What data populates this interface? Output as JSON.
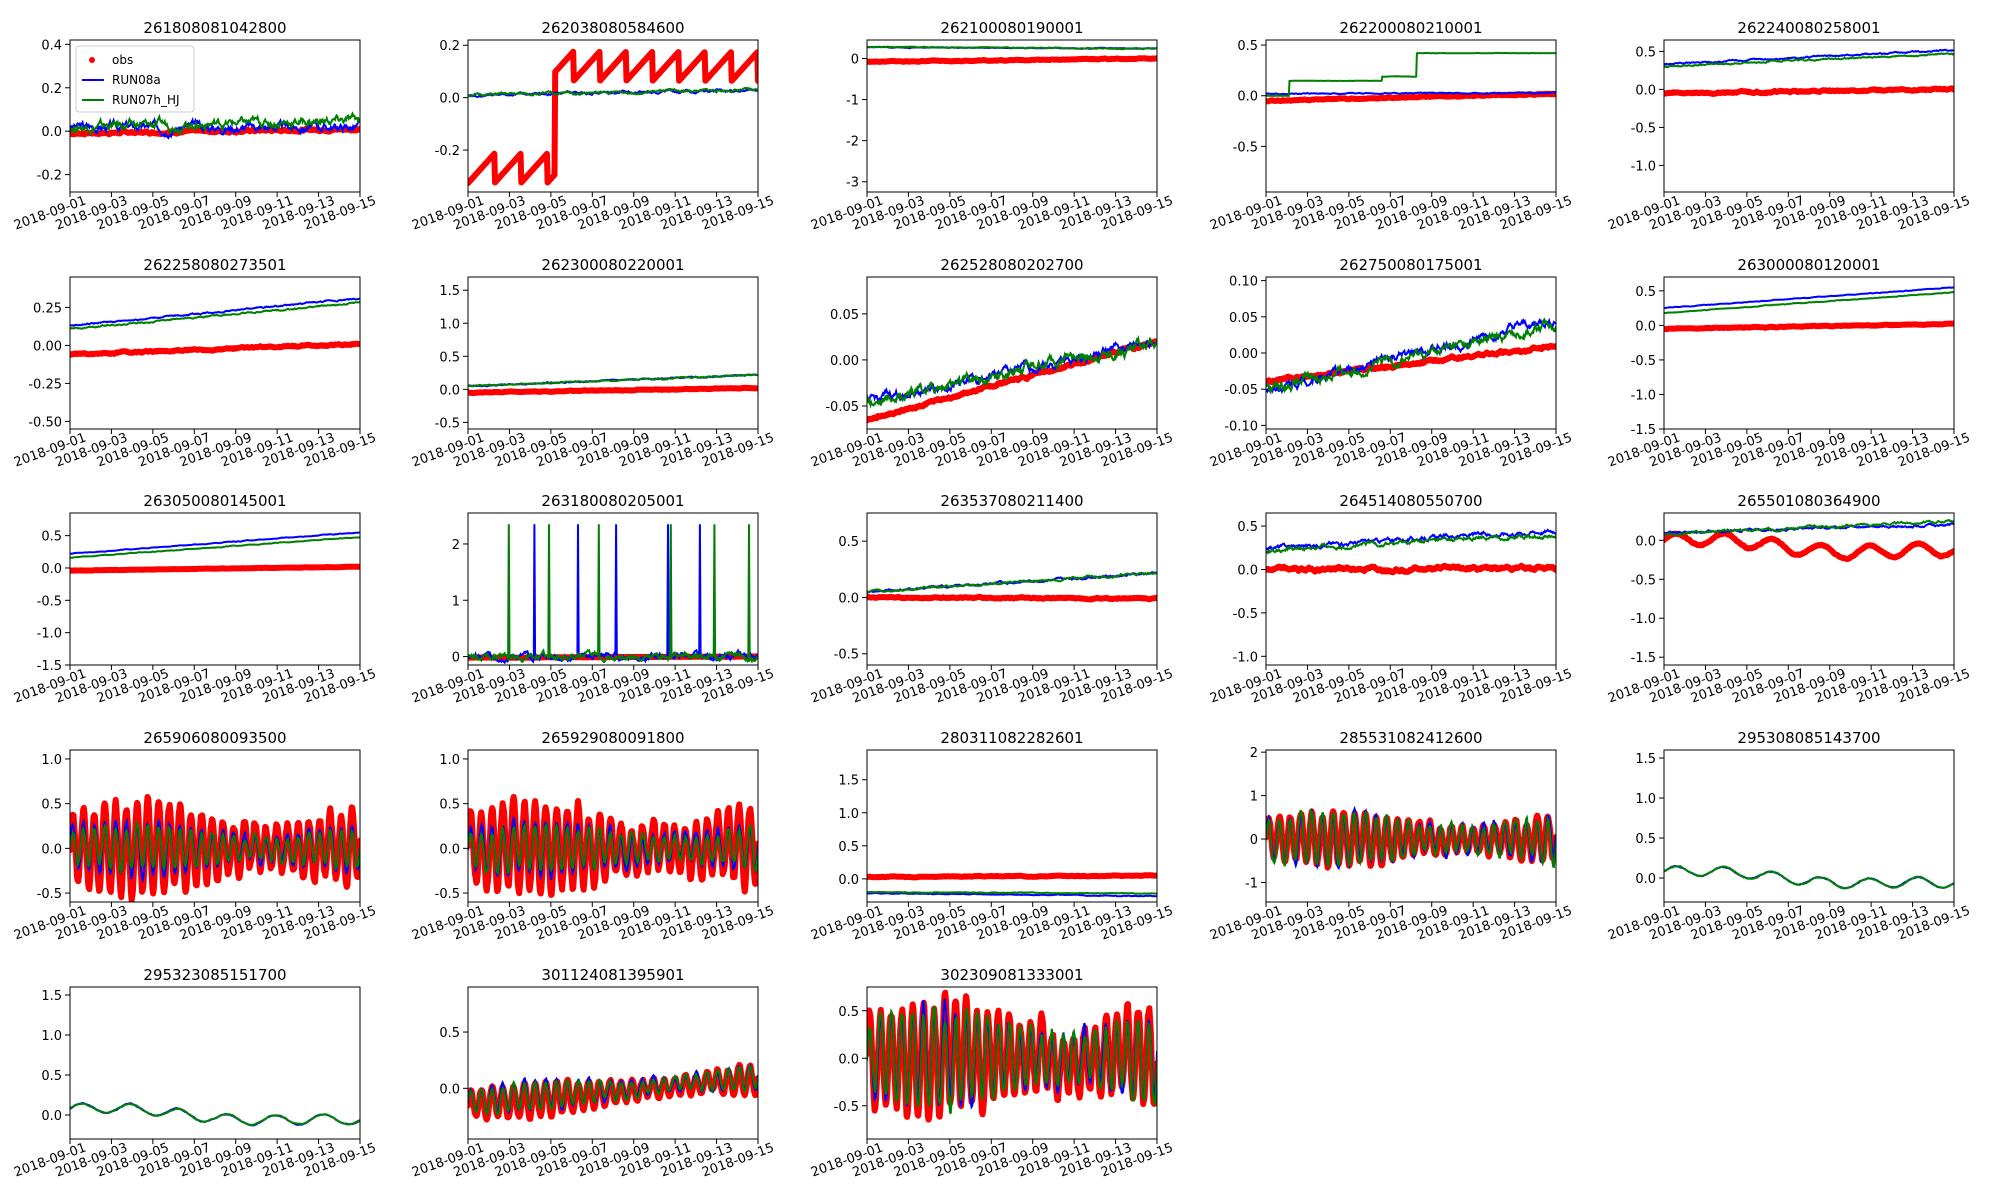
{
  "chart_data": [
    {
      "type": "line",
      "title": "261808081042800",
      "ylim": [
        -0.28,
        0.42
      ],
      "yticks": [
        "-0.2",
        "0.0",
        "0.2",
        "0.4"
      ],
      "ytick_values": [
        -0.2,
        0.0,
        0.2,
        0.4
      ],
      "x": [
        "2018-09-01",
        "2018-09-15"
      ],
      "obs": {
        "kind": "steady",
        "start": -0.01,
        "end": 0.01,
        "amp": 0.01
      },
      "series": [
        {
          "name": "RUN08a",
          "color": "#0000ff",
          "kind": "trend",
          "start": 0.02,
          "end": 0.02,
          "amp": 0.04
        },
        {
          "name": "RUN07h_HJ",
          "color": "#008000",
          "kind": "trend",
          "start": 0.02,
          "end": 0.05,
          "amp": 0.04
        }
      ],
      "legend": {
        "position": "upper-left",
        "entries": [
          "obs",
          "RUN08a",
          "RUN07h_HJ"
        ]
      }
    },
    {
      "type": "line",
      "title": "262038080584600",
      "ylim": [
        -0.36,
        0.22
      ],
      "yticks": [
        "-0.2",
        "0.0",
        "0.2"
      ],
      "ytick_values": [
        -0.2,
        0.0,
        0.2
      ],
      "x": [
        "2018-09-01",
        "2018-09-15"
      ],
      "obs": {
        "kind": "sawtooth_step",
        "start": -0.27,
        "end": 0.12,
        "amp": 0.08
      },
      "series": [
        {
          "name": "RUN08a",
          "color": "#0000ff",
          "kind": "trend",
          "start": 0.01,
          "end": 0.03,
          "amp": 0.01
        },
        {
          "name": "RUN07h_HJ",
          "color": "#008000",
          "kind": "trend",
          "start": 0.01,
          "end": 0.03,
          "amp": 0.01
        }
      ]
    },
    {
      "type": "line",
      "title": "262100080190001",
      "ylim": [
        -3.25,
        0.45
      ],
      "yticks": [
        "-3",
        "-2",
        "-1",
        "0"
      ],
      "ytick_values": [
        -3,
        -2,
        -1,
        0
      ],
      "x": [
        "2018-09-01",
        "2018-09-15"
      ],
      "obs": {
        "kind": "steady",
        "start": -0.08,
        "end": 0.0,
        "amp": 0.02
      },
      "series": [
        {
          "name": "RUN08a",
          "color": "#0000ff",
          "kind": "trend",
          "start": 0.28,
          "end": 0.24,
          "amp": 0.02
        },
        {
          "name": "RUN07h_HJ",
          "color": "#008000",
          "kind": "trend",
          "start": 0.28,
          "end": 0.24,
          "amp": 0.02
        }
      ]
    },
    {
      "type": "line",
      "title": "262200080210001",
      "ylim": [
        -0.95,
        0.55
      ],
      "yticks": [
        "-0.5",
        "0.0",
        "0.5"
      ],
      "ytick_values": [
        -0.5,
        0.0,
        0.5
      ],
      "x": [
        "2018-09-01",
        "2018-09-15"
      ],
      "obs": {
        "kind": "steady",
        "start": -0.05,
        "end": 0.02,
        "amp": 0.01
      },
      "series": [
        {
          "name": "RUN08a",
          "color": "#0000ff",
          "kind": "trend",
          "start": 0.02,
          "end": 0.03,
          "amp": 0.01
        },
        {
          "name": "RUN07h_HJ",
          "color": "#008000",
          "kind": "steps",
          "start": 0.0,
          "end": 0.42,
          "amp": 0.01
        }
      ]
    },
    {
      "type": "line",
      "title": "262240080258001",
      "ylim": [
        -1.35,
        0.65
      ],
      "yticks": [
        "-1.0",
        "-0.5",
        "0.0",
        "0.5"
      ],
      "ytick_values": [
        -1.0,
        -0.5,
        0.0,
        0.5
      ],
      "x": [
        "2018-09-01",
        "2018-09-15"
      ],
      "obs": {
        "kind": "steady",
        "start": -0.05,
        "end": 0.0,
        "amp": 0.02
      },
      "series": [
        {
          "name": "RUN08a",
          "color": "#0000ff",
          "kind": "trend",
          "start": 0.33,
          "end": 0.52,
          "amp": 0.02
        },
        {
          "name": "RUN07h_HJ",
          "color": "#008000",
          "kind": "trend",
          "start": 0.3,
          "end": 0.47,
          "amp": 0.02
        }
      ]
    },
    {
      "type": "line",
      "title": "262258080273501",
      "ylim": [
        -0.55,
        0.45
      ],
      "yticks": [
        "-0.50",
        "-0.25",
        "0.00",
        "0.25"
      ],
      "ytick_values": [
        -0.5,
        -0.25,
        0.0,
        0.25
      ],
      "x": [
        "2018-09-01",
        "2018-09-15"
      ],
      "obs": {
        "kind": "steady",
        "start": -0.06,
        "end": 0.01,
        "amp": 0.01
      },
      "series": [
        {
          "name": "RUN08a",
          "color": "#0000ff",
          "kind": "trend",
          "start": 0.13,
          "end": 0.31,
          "amp": 0.01
        },
        {
          "name": "RUN07h_HJ",
          "color": "#008000",
          "kind": "trend",
          "start": 0.11,
          "end": 0.28,
          "amp": 0.01
        }
      ]
    },
    {
      "type": "line",
      "title": "262300080220001",
      "ylim": [
        -0.6,
        1.7
      ],
      "yticks": [
        "-0.5",
        "0.0",
        "0.5",
        "1.0",
        "1.5"
      ],
      "ytick_values": [
        -0.5,
        0.0,
        0.5,
        1.0,
        1.5
      ],
      "x": [
        "2018-09-01",
        "2018-09-15"
      ],
      "obs": {
        "kind": "steady",
        "start": -0.05,
        "end": 0.02,
        "amp": 0.01
      },
      "series": [
        {
          "name": "RUN08a",
          "color": "#0000ff",
          "kind": "trend",
          "start": 0.05,
          "end": 0.22,
          "amp": 0.02
        },
        {
          "name": "RUN07h_HJ",
          "color": "#008000",
          "kind": "trend",
          "start": 0.05,
          "end": 0.22,
          "amp": 0.02
        }
      ]
    },
    {
      "type": "line",
      "title": "262528080202700",
      "ylim": [
        -0.075,
        0.09
      ],
      "yticks": [
        "-0.05",
        "0.00",
        "0.05"
      ],
      "ytick_values": [
        -0.05,
        0.0,
        0.05
      ],
      "x": [
        "2018-09-01",
        "2018-09-15"
      ],
      "obs": {
        "kind": "steady",
        "start": -0.065,
        "end": 0.02,
        "amp": 0.003
      },
      "series": [
        {
          "name": "RUN08a",
          "color": "#0000ff",
          "kind": "trend",
          "start": -0.045,
          "end": 0.02,
          "amp": 0.01
        },
        {
          "name": "RUN07h_HJ",
          "color": "#008000",
          "kind": "trend",
          "start": -0.045,
          "end": 0.02,
          "amp": 0.012
        }
      ]
    },
    {
      "type": "line",
      "title": "262750080175001",
      "ylim": [
        -0.105,
        0.105
      ],
      "yticks": [
        "-0.10",
        "-0.05",
        "0.00",
        "0.05",
        "0.10"
      ],
      "ytick_values": [
        -0.1,
        -0.05,
        0.0,
        0.05,
        0.1
      ],
      "x": [
        "2018-09-01",
        "2018-09-15"
      ],
      "obs": {
        "kind": "steady",
        "start": -0.04,
        "end": 0.01,
        "amp": 0.004
      },
      "series": [
        {
          "name": "RUN08a",
          "color": "#0000ff",
          "kind": "trend",
          "start": -0.05,
          "end": 0.045,
          "amp": 0.012
        },
        {
          "name": "RUN07h_HJ",
          "color": "#008000",
          "kind": "trend",
          "start": -0.05,
          "end": 0.04,
          "amp": 0.014
        }
      ]
    },
    {
      "type": "line",
      "title": "263000080120001",
      "ylim": [
        -1.5,
        0.7
      ],
      "yticks": [
        "-1.5",
        "-1.0",
        "-0.5",
        "0.0",
        "0.5"
      ],
      "ytick_values": [
        -1.5,
        -1.0,
        -0.5,
        0.0,
        0.5
      ],
      "x": [
        "2018-09-01",
        "2018-09-15"
      ],
      "obs": {
        "kind": "steady",
        "start": -0.05,
        "end": 0.02,
        "amp": 0.01
      },
      "series": [
        {
          "name": "RUN08a",
          "color": "#0000ff",
          "kind": "trend",
          "start": 0.25,
          "end": 0.55,
          "amp": 0.01
        },
        {
          "name": "RUN07h_HJ",
          "color": "#008000",
          "kind": "trend",
          "start": 0.18,
          "end": 0.48,
          "amp": 0.01
        }
      ]
    },
    {
      "type": "line",
      "title": "263050080145001",
      "ylim": [
        -1.5,
        0.85
      ],
      "yticks": [
        "-1.5",
        "-1.0",
        "-0.5",
        "0.0",
        "0.5"
      ],
      "ytick_values": [
        -1.5,
        -1.0,
        -0.5,
        0.0,
        0.5
      ],
      "x": [
        "2018-09-01",
        "2018-09-15"
      ],
      "obs": {
        "kind": "steady",
        "start": -0.04,
        "end": 0.02,
        "amp": 0.005
      },
      "series": [
        {
          "name": "RUN08a",
          "color": "#0000ff",
          "kind": "trend",
          "start": 0.22,
          "end": 0.55,
          "amp": 0.01
        },
        {
          "name": "RUN07h_HJ",
          "color": "#008000",
          "kind": "trend",
          "start": 0.16,
          "end": 0.48,
          "amp": 0.01
        }
      ]
    },
    {
      "type": "line",
      "title": "263180080205001",
      "ylim": [
        -0.15,
        2.55
      ],
      "yticks": [
        "0",
        "1",
        "2"
      ],
      "ytick_values": [
        0,
        1,
        2
      ],
      "x": [
        "2018-09-01",
        "2018-09-15"
      ],
      "obs": {
        "kind": "steady",
        "start": -0.02,
        "end": 0.0,
        "amp": 0.005
      },
      "series": [
        {
          "name": "RUN08a",
          "color": "#0000ff",
          "kind": "spikes",
          "start": 0.0,
          "end": 0.0,
          "amp": 2.35
        },
        {
          "name": "RUN07h_HJ",
          "color": "#008000",
          "kind": "spikes",
          "start": 0.0,
          "end": 0.0,
          "amp": 2.35
        }
      ]
    },
    {
      "type": "line",
      "title": "263537080211400",
      "ylim": [
        -0.6,
        0.75
      ],
      "yticks": [
        "-0.5",
        "0.0",
        "0.5"
      ],
      "ytick_values": [
        -0.5,
        0.0,
        0.5
      ],
      "x": [
        "2018-09-01",
        "2018-09-15"
      ],
      "obs": {
        "kind": "steady",
        "start": 0.0,
        "end": -0.01,
        "amp": 0.01
      },
      "series": [
        {
          "name": "RUN08a",
          "color": "#0000ff",
          "kind": "trend",
          "start": 0.05,
          "end": 0.22,
          "amp": 0.02
        },
        {
          "name": "RUN07h_HJ",
          "color": "#008000",
          "kind": "trend",
          "start": 0.05,
          "end": 0.22,
          "amp": 0.02
        }
      ]
    },
    {
      "type": "line",
      "title": "264514080550700",
      "ylim": [
        -1.1,
        0.65
      ],
      "yticks": [
        "-1.0",
        "-0.5",
        "0.0",
        "0.5"
      ],
      "ytick_values": [
        -1.0,
        -0.5,
        0.0,
        0.5
      ],
      "x": [
        "2018-09-01",
        "2018-09-15"
      ],
      "obs": {
        "kind": "steady",
        "start": 0.0,
        "end": 0.02,
        "amp": 0.04
      },
      "series": [
        {
          "name": "RUN08a",
          "color": "#0000ff",
          "kind": "trend",
          "start": 0.25,
          "end": 0.45,
          "amp": 0.05
        },
        {
          "name": "RUN07h_HJ",
          "color": "#008000",
          "kind": "trend",
          "start": 0.22,
          "end": 0.4,
          "amp": 0.05
        }
      ]
    },
    {
      "type": "line",
      "title": "265501080364900",
      "ylim": [
        -1.6,
        0.35
      ],
      "yticks": [
        "-1.5",
        "-1.0",
        "-0.5",
        "0.0"
      ],
      "ytick_values": [
        -1.5,
        -1.0,
        -0.5,
        0.0
      ],
      "x": [
        "2018-09-01",
        "2018-09-15"
      ],
      "obs": {
        "kind": "wave",
        "start": 0.0,
        "end": -0.18,
        "amp": 0.08
      },
      "series": [
        {
          "name": "RUN08a",
          "color": "#0000ff",
          "kind": "trend",
          "start": 0.1,
          "end": 0.2,
          "amp": 0.03
        },
        {
          "name": "RUN07h_HJ",
          "color": "#008000",
          "kind": "trend",
          "start": 0.08,
          "end": 0.25,
          "amp": 0.03
        }
      ]
    },
    {
      "type": "line",
      "title": "265906080093500",
      "ylim": [
        -0.6,
        1.1
      ],
      "yticks": [
        "-0.5",
        "0.0",
        "0.5",
        "1.0"
      ],
      "ytick_values": [
        -0.5,
        0.0,
        0.5,
        1.0
      ],
      "x": [
        "2018-09-01",
        "2018-09-15"
      ],
      "obs": {
        "kind": "tidal",
        "start": 0.0,
        "end": 0.0,
        "amp": 0.5
      },
      "series": [
        {
          "name": "RUN08a",
          "color": "#0000ff",
          "kind": "tidal",
          "start": 0.0,
          "end": 0.0,
          "amp": 0.3
        },
        {
          "name": "RUN07h_HJ",
          "color": "#008000",
          "kind": "tidal",
          "start": 0.0,
          "end": 0.0,
          "amp": 0.25
        }
      ]
    },
    {
      "type": "line",
      "title": "265929080091800",
      "ylim": [
        -0.6,
        1.1
      ],
      "yticks": [
        "-0.5",
        "0.0",
        "0.5",
        "1.0"
      ],
      "ytick_values": [
        -0.5,
        0.0,
        0.5,
        1.0
      ],
      "x": [
        "2018-09-01",
        "2018-09-15"
      ],
      "obs": {
        "kind": "tidal",
        "start": 0.0,
        "end": 0.0,
        "amp": 0.5
      },
      "series": [
        {
          "name": "RUN08a",
          "color": "#0000ff",
          "kind": "tidal",
          "start": 0.0,
          "end": 0.0,
          "amp": 0.3
        },
        {
          "name": "RUN07h_HJ",
          "color": "#008000",
          "kind": "tidal",
          "start": 0.0,
          "end": 0.0,
          "amp": 0.25
        }
      ]
    },
    {
      "type": "line",
      "title": "280311082282601",
      "ylim": [
        -0.35,
        1.95
      ],
      "yticks": [
        "0.0",
        "0.5",
        "1.0",
        "1.5"
      ],
      "ytick_values": [
        0.0,
        0.5,
        1.0,
        1.5
      ],
      "x": [
        "2018-09-01",
        "2018-09-15"
      ],
      "obs": {
        "kind": "steady",
        "start": 0.03,
        "end": 0.05,
        "amp": 0.01
      },
      "series": [
        {
          "name": "RUN08a",
          "color": "#0000ff",
          "kind": "trend",
          "start": -0.22,
          "end": -0.26,
          "amp": 0.01
        },
        {
          "name": "RUN07h_HJ",
          "color": "#008000",
          "kind": "trend",
          "start": -0.2,
          "end": -0.22,
          "amp": 0.01
        }
      ]
    },
    {
      "type": "line",
      "title": "285531082412600",
      "ylim": [
        -1.45,
        2.05
      ],
      "yticks": [
        "-1",
        "0",
        "1",
        "2"
      ],
      "ytick_values": [
        -1,
        0,
        1,
        2
      ],
      "x": [
        "2018-09-01",
        "2018-09-15"
      ],
      "obs": {
        "kind": "tidal",
        "start": 0.0,
        "end": 0.0,
        "amp": 0.6
      },
      "series": [
        {
          "name": "RUN08a",
          "color": "#0000ff",
          "kind": "tidal",
          "start": 0.0,
          "end": 0.0,
          "amp": 0.6
        },
        {
          "name": "RUN07h_HJ",
          "color": "#008000",
          "kind": "tidal",
          "start": 0.0,
          "end": 0.0,
          "amp": 0.6
        }
      ]
    },
    {
      "type": "line",
      "title": "295308085143700",
      "ylim": [
        -0.3,
        1.6
      ],
      "yticks": [
        "0.0",
        "0.5",
        "1.0",
        "1.5"
      ],
      "ytick_values": [
        0.0,
        0.5,
        1.0,
        1.5
      ],
      "x": [
        "2018-09-01",
        "2018-09-15"
      ],
      "obs": null,
      "series": [
        {
          "name": "RUN08a",
          "color": "#0000ff",
          "kind": "wave",
          "start": 0.08,
          "end": -0.1,
          "amp": 0.06
        },
        {
          "name": "RUN07h_HJ",
          "color": "#008000",
          "kind": "wave",
          "start": 0.08,
          "end": -0.1,
          "amp": 0.06
        }
      ]
    },
    {
      "type": "line",
      "title": "295323085151700",
      "ylim": [
        -0.3,
        1.6
      ],
      "yticks": [
        "0.0",
        "0.5",
        "1.0",
        "1.5"
      ],
      "ytick_values": [
        0.0,
        0.5,
        1.0,
        1.5
      ],
      "x": [
        "2018-09-01",
        "2018-09-15"
      ],
      "obs": null,
      "series": [
        {
          "name": "RUN08a",
          "color": "#0000ff",
          "kind": "wave",
          "start": 0.08,
          "end": -0.1,
          "amp": 0.06
        },
        {
          "name": "RUN07h_HJ",
          "color": "#008000",
          "kind": "wave",
          "start": 0.08,
          "end": -0.1,
          "amp": 0.06
        }
      ]
    },
    {
      "type": "line",
      "title": "301124081395901",
      "ylim": [
        -0.45,
        0.9
      ],
      "yticks": [
        "0.0",
        "0.5"
      ],
      "ytick_values": [
        0.0,
        0.5
      ],
      "x": [
        "2018-09-01",
        "2018-09-15"
      ],
      "obs": {
        "kind": "tidal",
        "start": -0.15,
        "end": 0.08,
        "amp": 0.15
      },
      "series": [
        {
          "name": "RUN08a",
          "color": "#0000ff",
          "kind": "tidal",
          "start": -0.12,
          "end": 0.1,
          "amp": 0.13
        },
        {
          "name": "RUN07h_HJ",
          "color": "#008000",
          "kind": "tidal",
          "start": -0.12,
          "end": 0.1,
          "amp": 0.12
        }
      ]
    },
    {
      "type": "line",
      "title": "302309081333001",
      "ylim": [
        -0.85,
        0.75
      ],
      "yticks": [
        "-0.5",
        "0.0",
        "0.5"
      ],
      "ytick_values": [
        -0.5,
        0.0,
        0.5
      ],
      "x": [
        "2018-09-01",
        "2018-09-15"
      ],
      "obs": {
        "kind": "tidal",
        "start": 0.0,
        "end": 0.0,
        "amp": 0.6
      },
      "series": [
        {
          "name": "RUN08a",
          "color": "#0000ff",
          "kind": "tidal",
          "start": 0.0,
          "end": 0.0,
          "amp": 0.5
        },
        {
          "name": "RUN07h_HJ",
          "color": "#008000",
          "kind": "tidal",
          "start": 0.0,
          "end": 0.0,
          "amp": 0.5
        }
      ]
    }
  ],
  "xticks": [
    "2018-09-01",
    "2018-09-03",
    "2018-09-05",
    "2018-09-07",
    "2018-09-09",
    "2018-09-11",
    "2018-09-13",
    "2018-09-15"
  ],
  "colors": {
    "obs": "#ff0000",
    "RUN08a": "#0000ff",
    "RUN07h_HJ": "#008000"
  }
}
